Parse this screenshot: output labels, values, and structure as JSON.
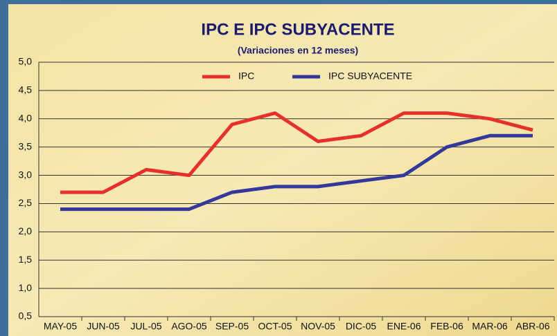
{
  "chart_data": {
    "type": "line",
    "title": "IPC E IPC SUBYACENTE",
    "subtitle": "(Variaciones en 12 meses)",
    "categories": [
      "MAY-05",
      "JUN-05",
      "JUL-05",
      "AGO-05",
      "SEP-05",
      "OCT-05",
      "NOV-05",
      "DIC-05",
      "ENE-06",
      "FEB-06",
      "MAR-06",
      "ABR-06"
    ],
    "series": [
      {
        "name": "IPC",
        "color": "#e8302a",
        "values": [
          2.7,
          2.7,
          3.1,
          3.0,
          3.9,
          4.1,
          3.6,
          3.7,
          4.1,
          4.1,
          4.0,
          3.8
        ]
      },
      {
        "name": "IPC SUBYACENTE",
        "color": "#33399a",
        "values": [
          2.4,
          2.4,
          2.4,
          2.4,
          2.7,
          2.8,
          2.8,
          2.9,
          3.0,
          3.5,
          3.7,
          3.7
        ]
      }
    ],
    "ylim": [
      0.5,
      5.0
    ],
    "yticks": [
      {
        "value": 0.5,
        "label": "0,5"
      },
      {
        "value": 1.0,
        "label": "1,0"
      },
      {
        "value": 1.5,
        "label": "1,5"
      },
      {
        "value": 2.0,
        "label": "2,0"
      },
      {
        "value": 2.5,
        "label": "2,5"
      },
      {
        "value": 3.0,
        "label": "3,0"
      },
      {
        "value": 3.5,
        "label": "3,5"
      },
      {
        "value": 4.0,
        "label": "4,0"
      },
      {
        "value": 4.5,
        "label": "4,5"
      },
      {
        "value": 5.0,
        "label": "5,0"
      }
    ],
    "grid": true,
    "legend": "top"
  }
}
